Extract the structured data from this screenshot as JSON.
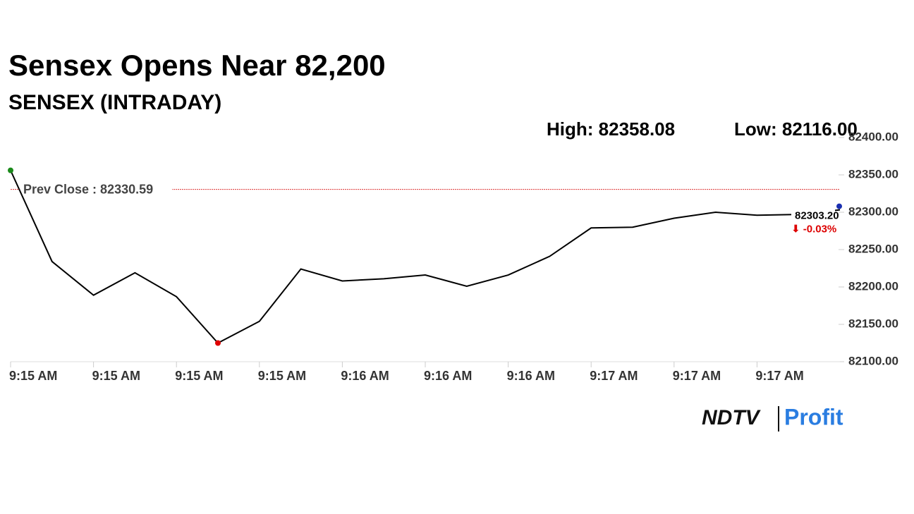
{
  "chart_data": {
    "type": "line",
    "title": "Sensex Opens Near 82,200",
    "subtitle": "SENSEX (INTRADAY)",
    "high_label": "High: 82358.08",
    "low_label": "Low: 82116.00",
    "reference_line": {
      "label": "Prev Close : 82330.59",
      "value": 82330.59,
      "color": "#d33"
    },
    "categories": [
      "9:15 AM",
      null,
      "9:15 AM",
      null,
      "9:15 AM",
      null,
      "9:15 AM",
      null,
      "9:16 AM",
      null,
      "9:16 AM",
      null,
      "9:16 AM",
      null,
      "9:17 AM",
      null,
      "9:17 AM",
      null,
      "9:17 AM",
      null,
      null
    ],
    "series": [
      {
        "name": "SENSEX",
        "color": "#000000",
        "values": [
          82356,
          82234,
          82189,
          82219,
          82187,
          82125,
          82154,
          82224,
          82208,
          82211,
          82216,
          82201,
          82216,
          82241,
          82279,
          82280,
          82292,
          82300,
          82296,
          82297,
          82303.2
        ]
      }
    ],
    "start_marker_color": "#1a8a1a",
    "low_marker_color": "#e00000",
    "end_marker_color": "#1a2fb0",
    "last_value_label": "82303.20",
    "change_label": "⬇ -0.03%",
    "ylim": [
      82100,
      82400
    ],
    "yticks": [
      {
        "value": 82100,
        "label": "82100.00"
      },
      {
        "value": 82150,
        "label": "82150.00"
      },
      {
        "value": 82200,
        "label": "82200.00"
      },
      {
        "value": 82250,
        "label": "82250.00"
      },
      {
        "value": 82300,
        "label": "82300.00"
      },
      {
        "value": 82350,
        "label": "82350.00"
      },
      {
        "value": 82400,
        "label": "82400.00"
      }
    ],
    "logo": {
      "left": "NDTV",
      "right": "Profit"
    }
  }
}
